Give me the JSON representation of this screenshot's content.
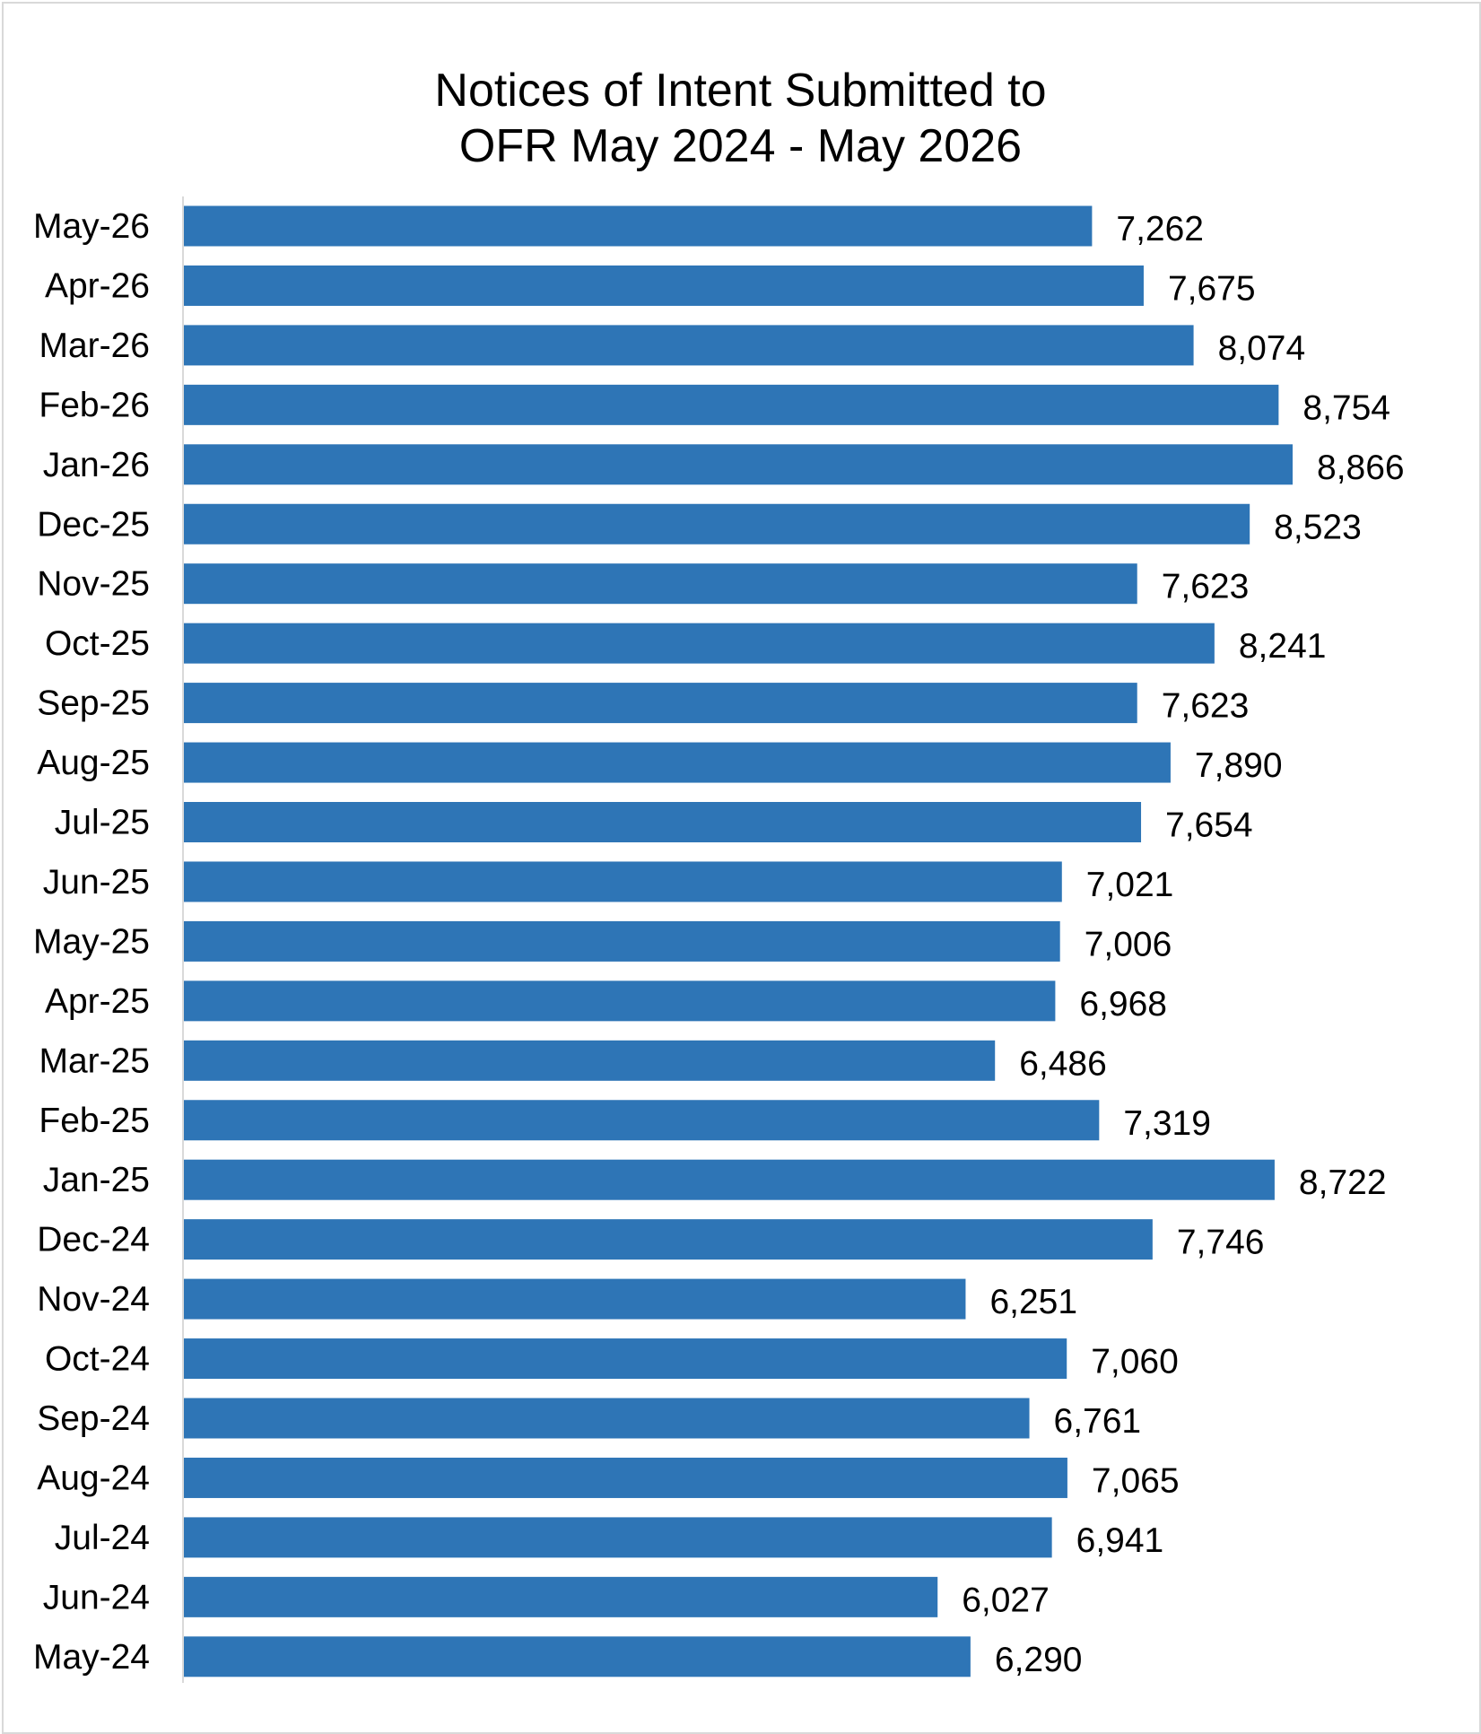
{
  "chart_data": {
    "type": "bar",
    "orientation": "horizontal",
    "title": "Notices of Intent Submitted to\nOFR May 2024 - May 2026",
    "xlabel": "",
    "ylabel": "",
    "categories": [
      "May-26",
      "Apr-26",
      "Mar-26",
      "Feb-26",
      "Jan-26",
      "Dec-25",
      "Nov-25",
      "Oct-25",
      "Sep-25",
      "Aug-25",
      "Jul-25",
      "Jun-25",
      "May-25",
      "Apr-25",
      "Mar-25",
      "Feb-25",
      "Jan-25",
      "Dec-24",
      "Nov-24",
      "Oct-24",
      "Sep-24",
      "Aug-24",
      "Jul-24",
      "Jun-24",
      "May-24"
    ],
    "values": [
      7262,
      7675,
      8074,
      8754,
      8866,
      8523,
      7623,
      8241,
      7623,
      7890,
      7654,
      7021,
      7006,
      6968,
      6486,
      7319,
      8722,
      7746,
      6251,
      7060,
      6761,
      7065,
      6941,
      6027,
      6290
    ],
    "value_labels": [
      "7,262",
      "7,675",
      "8,074",
      "8,754",
      "8,866",
      "8,523",
      "7,623",
      "8,241",
      "7,623",
      "7,890",
      "7,654",
      "7,021",
      "7,006",
      "6,968",
      "6,486",
      "7,319",
      "8,722",
      "7,746",
      "6,251",
      "7,060",
      "6,761",
      "7,065",
      "6,941",
      "6,027",
      "6,290"
    ],
    "xlim": [
      0,
      8866
    ],
    "grid": false,
    "legend": "none",
    "bar_color": "#2e75b6",
    "axis_color": "#d9d9d9"
  }
}
